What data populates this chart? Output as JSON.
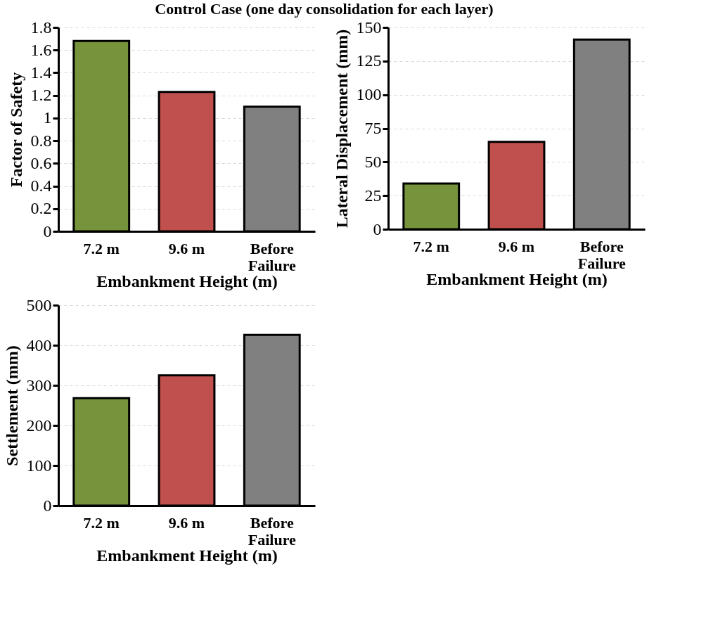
{
  "chart_data": [
    {
      "type": "bar",
      "title": "Control Case (one day consolidation for each layer)",
      "xlabel": "Embankment Height (m)",
      "ylabel": "Factor of Safety",
      "categories": [
        "7.2 m",
        "9.6 m",
        "Before Failure"
      ],
      "values": [
        1.68,
        1.23,
        1.1
      ],
      "colors": [
        "#77933c",
        "#c0504d",
        "#808080"
      ],
      "ylim": [
        0,
        1.8
      ],
      "yticks": [
        0,
        0.2,
        0.4,
        0.6,
        0.8,
        1,
        1.2,
        1.4,
        1.6,
        1.8
      ],
      "grid": "y"
    },
    {
      "type": "bar",
      "xlabel": "Embankment Height (m)",
      "ylabel": "Lateral Displacement (mm)",
      "categories": [
        "7.2 m",
        "9.6 m",
        "Before Failure"
      ],
      "values": [
        34,
        65,
        141
      ],
      "colors": [
        "#77933c",
        "#c0504d",
        "#808080"
      ],
      "ylim": [
        0,
        150
      ],
      "yticks": [
        0,
        25,
        50,
        75,
        100,
        125,
        150
      ],
      "grid": "y"
    },
    {
      "type": "bar",
      "xlabel": "Embankment Height (m)",
      "ylabel": "Settlement (mm)",
      "categories": [
        "7.2 m",
        "9.6 m",
        "Before Failure"
      ],
      "values": [
        268,
        325,
        426
      ],
      "colors": [
        "#77933c",
        "#c0504d",
        "#808080"
      ],
      "ylim": [
        0,
        500
      ],
      "yticks": [
        0,
        100,
        200,
        300,
        400,
        500
      ],
      "grid": "y"
    }
  ]
}
